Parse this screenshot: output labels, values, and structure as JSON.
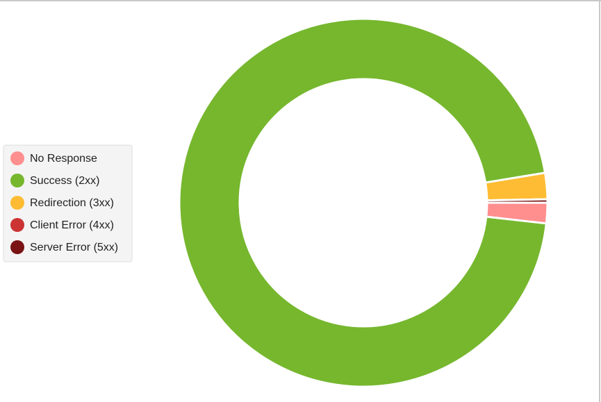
{
  "chart_data": {
    "type": "donut",
    "categories": [
      "No Response",
      "Success (2xx)",
      "Redirection (3xx)",
      "Client Error (4xx)",
      "Server Error (5xx)"
    ],
    "values": [
      1.8,
      95.6,
      2.3,
      0,
      0.3
    ],
    "colors": [
      "#ff8e8e",
      "#76b72e",
      "#fdbc33",
      "#cc3333",
      "#7a1414"
    ],
    "legend": "left"
  }
}
